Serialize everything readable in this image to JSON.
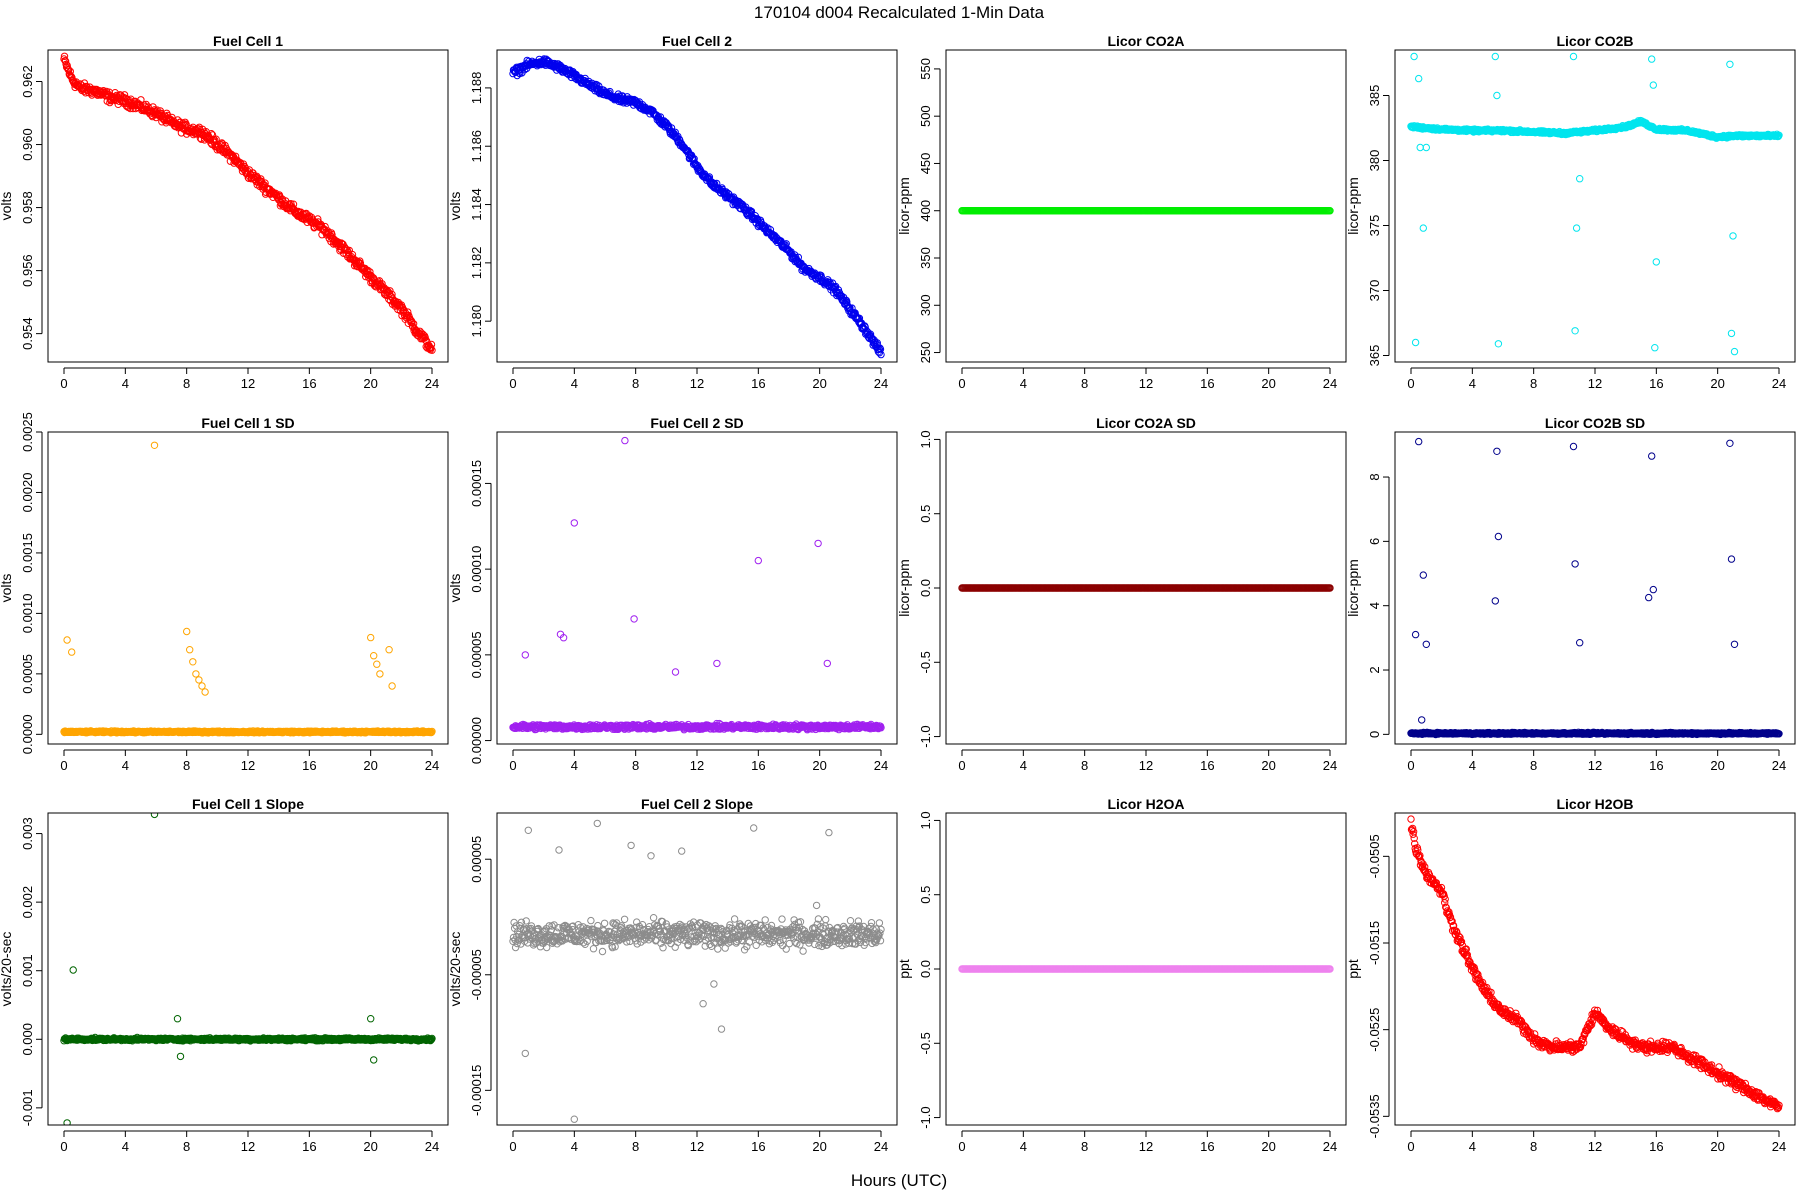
{
  "figure": {
    "title": "170104   d004   Recalculated 1-Min Data",
    "xlabel": "Hours (UTC)"
  },
  "chart_data": [
    {
      "type": "scatter",
      "title": "Fuel Cell 1",
      "ylabel": "volts",
      "color": "#ff0000",
      "xlim": [
        0,
        24
      ],
      "ylim": [
        0.9531,
        0.963
      ],
      "xticks": [
        0,
        4,
        8,
        12,
        16,
        20,
        24
      ],
      "xtick_labels": [
        "0",
        "4",
        "8",
        "12",
        "16",
        "20",
        "24"
      ],
      "yticks": [
        0.954,
        0.956,
        0.958,
        0.96,
        0.962
      ],
      "ytick_labels": [
        "0.954",
        "0.956",
        "0.958",
        "0.960",
        "0.962"
      ],
      "series": [
        {
          "x": [
            0,
            0.5,
            1,
            2,
            3,
            4,
            5,
            6,
            7,
            8,
            9,
            10,
            11,
            12,
            13,
            14,
            15,
            16,
            17,
            18,
            19,
            20,
            21,
            22,
            23,
            24
          ],
          "y": [
            0.9627,
            0.9621,
            0.9618,
            0.9617,
            0.9615,
            0.9614,
            0.9612,
            0.961,
            0.9607,
            0.9605,
            0.9604,
            0.96,
            0.9596,
            0.9591,
            0.9587,
            0.9583,
            0.9579,
            0.9576,
            0.9573,
            0.9568,
            0.9563,
            0.9558,
            0.9553,
            0.9548,
            0.9541,
            0.9535
          ]
        }
      ]
    },
    {
      "type": "scatter",
      "title": "Fuel Cell 2",
      "ylabel": "volts",
      "color": "#0000ee",
      "xlim": [
        0,
        24
      ],
      "ylim": [
        1.1786,
        1.1893
      ],
      "xticks": [
        0,
        4,
        8,
        12,
        16,
        20,
        24
      ],
      "xtick_labels": [
        "0",
        "4",
        "8",
        "12",
        "16",
        "20",
        "24"
      ],
      "yticks": [
        1.18,
        1.182,
        1.184,
        1.186,
        1.188
      ],
      "ytick_labels": [
        "1.180",
        "1.182",
        "1.184",
        "1.186",
        "1.188"
      ],
      "series": [
        {
          "x": [
            0,
            1,
            2,
            3,
            4,
            5,
            6,
            7,
            8,
            9,
            10,
            11,
            12,
            13,
            14,
            15,
            16,
            17,
            18,
            19,
            20,
            21,
            22,
            23,
            24
          ],
          "y": [
            1.1885,
            1.1888,
            1.1889,
            1.1887,
            1.1884,
            1.1881,
            1.1878,
            1.1876,
            1.1875,
            1.1872,
            1.1867,
            1.1861,
            1.1853,
            1.1847,
            1.1843,
            1.1839,
            1.1834,
            1.1829,
            1.1824,
            1.1818,
            1.1815,
            1.1811,
            1.1804,
            1.1797,
            1.1789
          ]
        }
      ]
    },
    {
      "type": "scatter",
      "title": "Licor CO2A",
      "ylabel": "licor-ppm",
      "color": "#00ee00",
      "xlim": [
        0,
        24
      ],
      "ylim": [
        240,
        570
      ],
      "xticks": [
        0,
        4,
        8,
        12,
        16,
        20,
        24
      ],
      "xtick_labels": [
        "0",
        "4",
        "8",
        "12",
        "16",
        "20",
        "24"
      ],
      "yticks": [
        250,
        300,
        350,
        400,
        450,
        500,
        550
      ],
      "ytick_labels": [
        "250",
        "300",
        "350",
        "400",
        "450",
        "500",
        "550"
      ],
      "series": [
        {
          "x": [
            0,
            24
          ],
          "y": [
            400,
            400
          ]
        }
      ]
    },
    {
      "type": "scatter",
      "title": "Licor CO2B",
      "ylabel": "licor-ppm",
      "color": "#00e5ee",
      "xlim": [
        0,
        24
      ],
      "ylim": [
        364.5,
        388.5
      ],
      "xticks": [
        0,
        4,
        8,
        12,
        16,
        20,
        24
      ],
      "xtick_labels": [
        "0",
        "4",
        "8",
        "12",
        "16",
        "20",
        "24"
      ],
      "yticks": [
        365,
        370,
        375,
        380,
        385
      ],
      "ytick_labels": [
        "365",
        "370",
        "375",
        "380",
        "385"
      ],
      "series": [
        {
          "x": [
            0,
            2,
            4,
            6,
            8,
            10,
            12,
            14,
            15,
            16,
            18,
            20,
            21,
            22,
            24
          ],
          "y": [
            382.6,
            382.4,
            382.3,
            382.3,
            382.2,
            382.1,
            382.3,
            382.6,
            383.0,
            382.4,
            382.3,
            381.8,
            381.9,
            381.9,
            381.9
          ]
        }
      ],
      "outliers": {
        "x": [
          0.2,
          0.3,
          0.5,
          0.6,
          0.8,
          1.0,
          5.5,
          5.6,
          5.7,
          10.6,
          10.7,
          10.8,
          11.0,
          15.7,
          15.8,
          15.9,
          16.0,
          20.8,
          20.9,
          21.0,
          21.1
        ],
        "y": [
          388.0,
          366.0,
          386.3,
          381.0,
          374.8,
          381.0,
          388.0,
          385.0,
          365.9,
          388.0,
          366.9,
          374.8,
          378.6,
          387.8,
          385.8,
          365.6,
          372.2,
          387.4,
          366.7,
          374.2,
          365.3
        ]
      }
    },
    {
      "type": "scatter",
      "title": "Fuel Cell 1 SD",
      "ylabel": "volts",
      "color": "#ffa500",
      "xlim": [
        0,
        24
      ],
      "ylim": [
        -8e-05,
        0.0025
      ],
      "xticks": [
        0,
        4,
        8,
        12,
        16,
        20,
        24
      ],
      "xtick_labels": [
        "0",
        "4",
        "8",
        "12",
        "16",
        "20",
        "24"
      ],
      "yticks": [
        0.0,
        0.0005,
        0.001,
        0.0015,
        0.002,
        0.0025
      ],
      "ytick_labels": [
        "0.0000",
        "0.0005",
        "0.0010",
        "0.0015",
        "0.0020",
        "0.0025"
      ],
      "series": [
        {
          "x": [
            0,
            24
          ],
          "y": [
            2e-05,
            2e-05
          ]
        }
      ],
      "outliers": {
        "x": [
          0.2,
          0.5,
          5.9,
          8.0,
          8.2,
          8.4,
          8.6,
          8.8,
          9.0,
          9.2,
          20.0,
          20.2,
          20.4,
          20.6,
          21.2,
          21.4
        ],
        "y": [
          0.00078,
          0.00068,
          0.00239,
          0.00085,
          0.0007,
          0.0006,
          0.0005,
          0.00045,
          0.0004,
          0.00035,
          0.0008,
          0.00065,
          0.00058,
          0.0005,
          0.0007,
          0.0004
        ]
      }
    },
    {
      "type": "scatter",
      "title": "Fuel Cell 2 SD",
      "ylabel": "volts",
      "color": "#a020f0",
      "xlim": [
        0,
        24
      ],
      "ylim": [
        -2e-06,
        0.00018
      ],
      "xticks": [
        0,
        4,
        8,
        12,
        16,
        20,
        24
      ],
      "xtick_labels": [
        "0",
        "4",
        "8",
        "12",
        "16",
        "20",
        "24"
      ],
      "yticks": [
        0.0,
        5e-05,
        0.0001,
        0.00015
      ],
      "ytick_labels": [
        "0.00000",
        "0.00005",
        "0.00010",
        "0.00015"
      ],
      "series": [
        {
          "x": [
            0,
            24
          ],
          "y": [
            8e-06,
            8e-06
          ]
        }
      ],
      "outliers": {
        "x": [
          0.8,
          3.1,
          3.3,
          4.0,
          7.3,
          7.9,
          10.6,
          13.3,
          16.0,
          19.9,
          20.5
        ],
        "y": [
          5e-05,
          6.2e-05,
          6e-05,
          0.000127,
          0.000175,
          7.1e-05,
          4e-05,
          4.5e-05,
          0.000105,
          0.000115,
          4.5e-05
        ]
      }
    },
    {
      "type": "scatter",
      "title": "Licor CO2A SD",
      "ylabel": "licor-ppm",
      "color": "#8b0000",
      "xlim": [
        0,
        24
      ],
      "ylim": [
        -1.05,
        1.05
      ],
      "xticks": [
        0,
        4,
        8,
        12,
        16,
        20,
        24
      ],
      "xtick_labels": [
        "0",
        "4",
        "8",
        "12",
        "16",
        "20",
        "24"
      ],
      "yticks": [
        -1.0,
        -0.5,
        0.0,
        0.5,
        1.0
      ],
      "ytick_labels": [
        "-1.0",
        "-0.5",
        "0.0",
        "0.5",
        "1.0"
      ],
      "series": [
        {
          "x": [
            0,
            24
          ],
          "y": [
            0,
            0
          ]
        }
      ]
    },
    {
      "type": "scatter",
      "title": "Licor CO2B SD",
      "ylabel": "licor-ppm",
      "color": "#00008b",
      "xlim": [
        0,
        24
      ],
      "ylim": [
        -0.3,
        9.4
      ],
      "xticks": [
        0,
        4,
        8,
        12,
        16,
        20,
        24
      ],
      "xtick_labels": [
        "0",
        "4",
        "8",
        "12",
        "16",
        "20",
        "24"
      ],
      "yticks": [
        0,
        2,
        4,
        6,
        8
      ],
      "ytick_labels": [
        "0",
        "2",
        "4",
        "6",
        "8"
      ],
      "series": [
        {
          "x": [
            0,
            24
          ],
          "y": [
            0.03,
            0.03
          ]
        }
      ],
      "outliers": {
        "x": [
          0.3,
          0.5,
          0.8,
          1.0,
          0.7,
          5.5,
          5.6,
          5.7,
          10.6,
          10.7,
          11.0,
          15.5,
          15.7,
          15.8,
          20.8,
          20.9,
          21.1
        ],
        "y": [
          3.1,
          9.1,
          4.95,
          2.8,
          0.45,
          4.15,
          8.8,
          6.15,
          8.95,
          5.3,
          2.85,
          4.25,
          8.65,
          4.5,
          9.05,
          5.45,
          2.8
        ]
      }
    },
    {
      "type": "scatter",
      "title": "Fuel Cell 1 Slope",
      "ylabel": "volts/20-sec",
      "color": "#006400",
      "xlim": [
        0,
        24
      ],
      "ylim": [
        -0.00125,
        0.0033
      ],
      "xticks": [
        0,
        4,
        8,
        12,
        16,
        20,
        24
      ],
      "xtick_labels": [
        "0",
        "4",
        "8",
        "12",
        "16",
        "20",
        "24"
      ],
      "yticks": [
        -0.001,
        0.0,
        0.001,
        0.002,
        0.003
      ],
      "ytick_labels": [
        "-0.001",
        "0.000",
        "0.001",
        "0.002",
        "0.003"
      ],
      "series": [
        {
          "x": [
            0,
            24
          ],
          "y": [
            0.0,
            0.0
          ]
        }
      ],
      "outliers": {
        "x": [
          0.2,
          0.6,
          5.9,
          7.4,
          7.6,
          20.0,
          20.2
        ],
        "y": [
          -0.00122,
          0.00101,
          0.00328,
          0.0003,
          -0.00025,
          0.0003,
          -0.0003
        ]
      }
    },
    {
      "type": "scatter",
      "title": "Fuel Cell 2 Slope",
      "ylabel": "volts/20-sec",
      "color": "#8c8c8c",
      "xlim": [
        0,
        24
      ],
      "ylim": [
        -0.00018,
        9e-05
      ],
      "xticks": [
        0,
        4,
        8,
        12,
        16,
        20,
        24
      ],
      "xtick_labels": [
        "0",
        "4",
        "8",
        "12",
        "16",
        "20",
        "24"
      ],
      "yticks": [
        -0.00015,
        -5e-05,
        5e-05
      ],
      "ytick_labels": [
        "-0.00015",
        "-0.00005",
        "0.00005"
      ],
      "series": [
        {
          "x": [
            0,
            24
          ],
          "y": [
            -1.5e-05,
            -1.5e-05
          ]
        }
      ],
      "outliers": {
        "x": [
          0.8,
          1.0,
          3.0,
          4.0,
          5.5,
          7.7,
          9.0,
          11.0,
          12.4,
          13.1,
          13.6,
          15.7,
          19.8,
          20.6
        ],
        "y": [
          -0.000118,
          7.5e-05,
          5.8e-05,
          -0.000175,
          8.1e-05,
          6.2e-05,
          5.3e-05,
          5.7e-05,
          -7.5e-05,
          -5.8e-05,
          -9.7e-05,
          7.7e-05,
          1e-05,
          7.3e-05
        ]
      }
    },
    {
      "type": "scatter",
      "title": "Licor H2OA",
      "ylabel": "ppt",
      "color": "#ee82ee",
      "xlim": [
        0,
        24
      ],
      "ylim": [
        -1.05,
        1.05
      ],
      "xticks": [
        0,
        4,
        8,
        12,
        16,
        20,
        24
      ],
      "xtick_labels": [
        "0",
        "4",
        "8",
        "12",
        "16",
        "20",
        "24"
      ],
      "yticks": [
        -1.0,
        -0.5,
        0.0,
        0.5,
        1.0
      ],
      "ytick_labels": [
        "-1.0",
        "-0.5",
        "0.0",
        "0.5",
        "1.0"
      ],
      "series": [
        {
          "x": [
            0,
            24
          ],
          "y": [
            0,
            0
          ]
        }
      ]
    },
    {
      "type": "scatter",
      "title": "Licor H2OB",
      "ylabel": "ppt",
      "color": "#ff0000",
      "xlim": [
        0,
        24
      ],
      "ylim": [
        -0.0536,
        -0.05
      ],
      "xticks": [
        0,
        4,
        8,
        12,
        16,
        20,
        24
      ],
      "xtick_labels": [
        "0",
        "4",
        "8",
        "12",
        "16",
        "20",
        "24"
      ],
      "yticks": [
        -0.0535,
        -0.0525,
        -0.0515,
        -0.0505
      ],
      "ytick_labels": [
        "-0.0535",
        "-0.0525",
        "-0.0515",
        "-0.0505"
      ],
      "series": [
        {
          "x": [
            0,
            0.3,
            1,
            2,
            2.5,
            3,
            3.5,
            4,
            5,
            6,
            7,
            8,
            9,
            10,
            11,
            12,
            13,
            14,
            15,
            16,
            17,
            18,
            19,
            20,
            21,
            22,
            23,
            24
          ],
          "y": [
            -0.0501,
            -0.0504,
            -0.0507,
            -0.0509,
            -0.0512,
            -0.0514,
            -0.0516,
            -0.0518,
            -0.0521,
            -0.0523,
            -0.0524,
            -0.0526,
            -0.0527,
            -0.0527,
            -0.0527,
            -0.0523,
            -0.0525,
            -0.0526,
            -0.0527,
            -0.0527,
            -0.0527,
            -0.0528,
            -0.0529,
            -0.053,
            -0.0531,
            -0.0532,
            -0.0533,
            -0.0534
          ]
        }
      ]
    }
  ]
}
